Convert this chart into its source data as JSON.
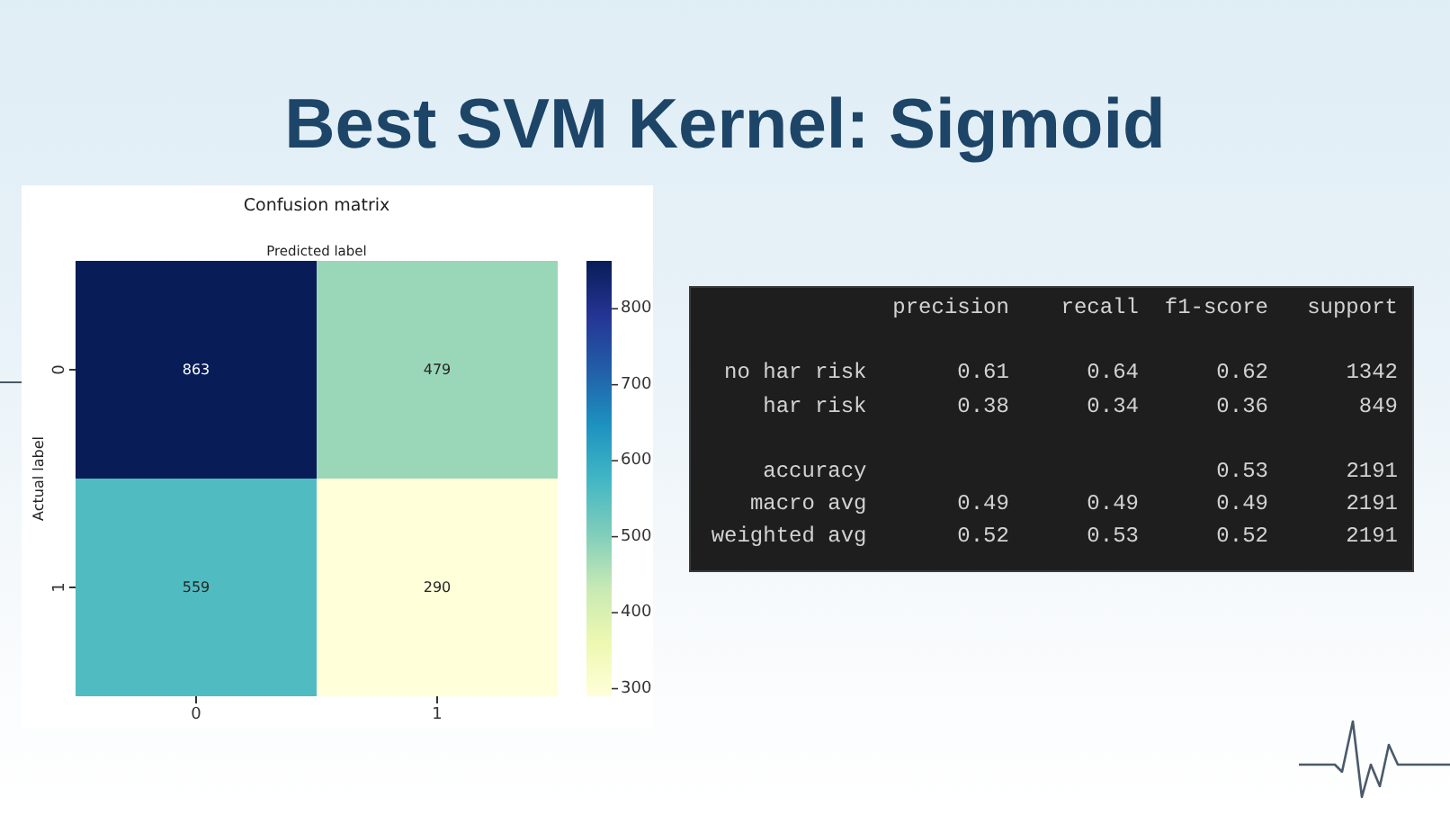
{
  "chart_data": [
    {
      "type": "other",
      "title": "Best SVM Kernel: Sigmoid"
    },
    {
      "type": "heatmap",
      "title": "Confusion matrix",
      "xlabel": "Predicted label",
      "ylabel": "Actual label",
      "categories": [
        "0",
        "1"
      ],
      "y_categories": [
        "0",
        "1"
      ],
      "cells": [
        [
          863,
          479
        ],
        [
          559,
          290
        ]
      ],
      "data_labels": true,
      "clim": [
        290,
        863
      ],
      "cticks": [
        300,
        400,
        500,
        600,
        700,
        800
      ]
    },
    {
      "type": "other",
      "annotations": [
        "precision    recall  f1-score   support",
        "no har risk       0.61      0.64      0.62      1342",
        "har risk       0.38      0.34      0.36       849",
        "accuracy                           0.53      2191",
        "macro avg       0.49      0.49      0.49      2191",
        "weighted avg       0.52      0.53      0.52      2191"
      ]
    }
  ]
}
